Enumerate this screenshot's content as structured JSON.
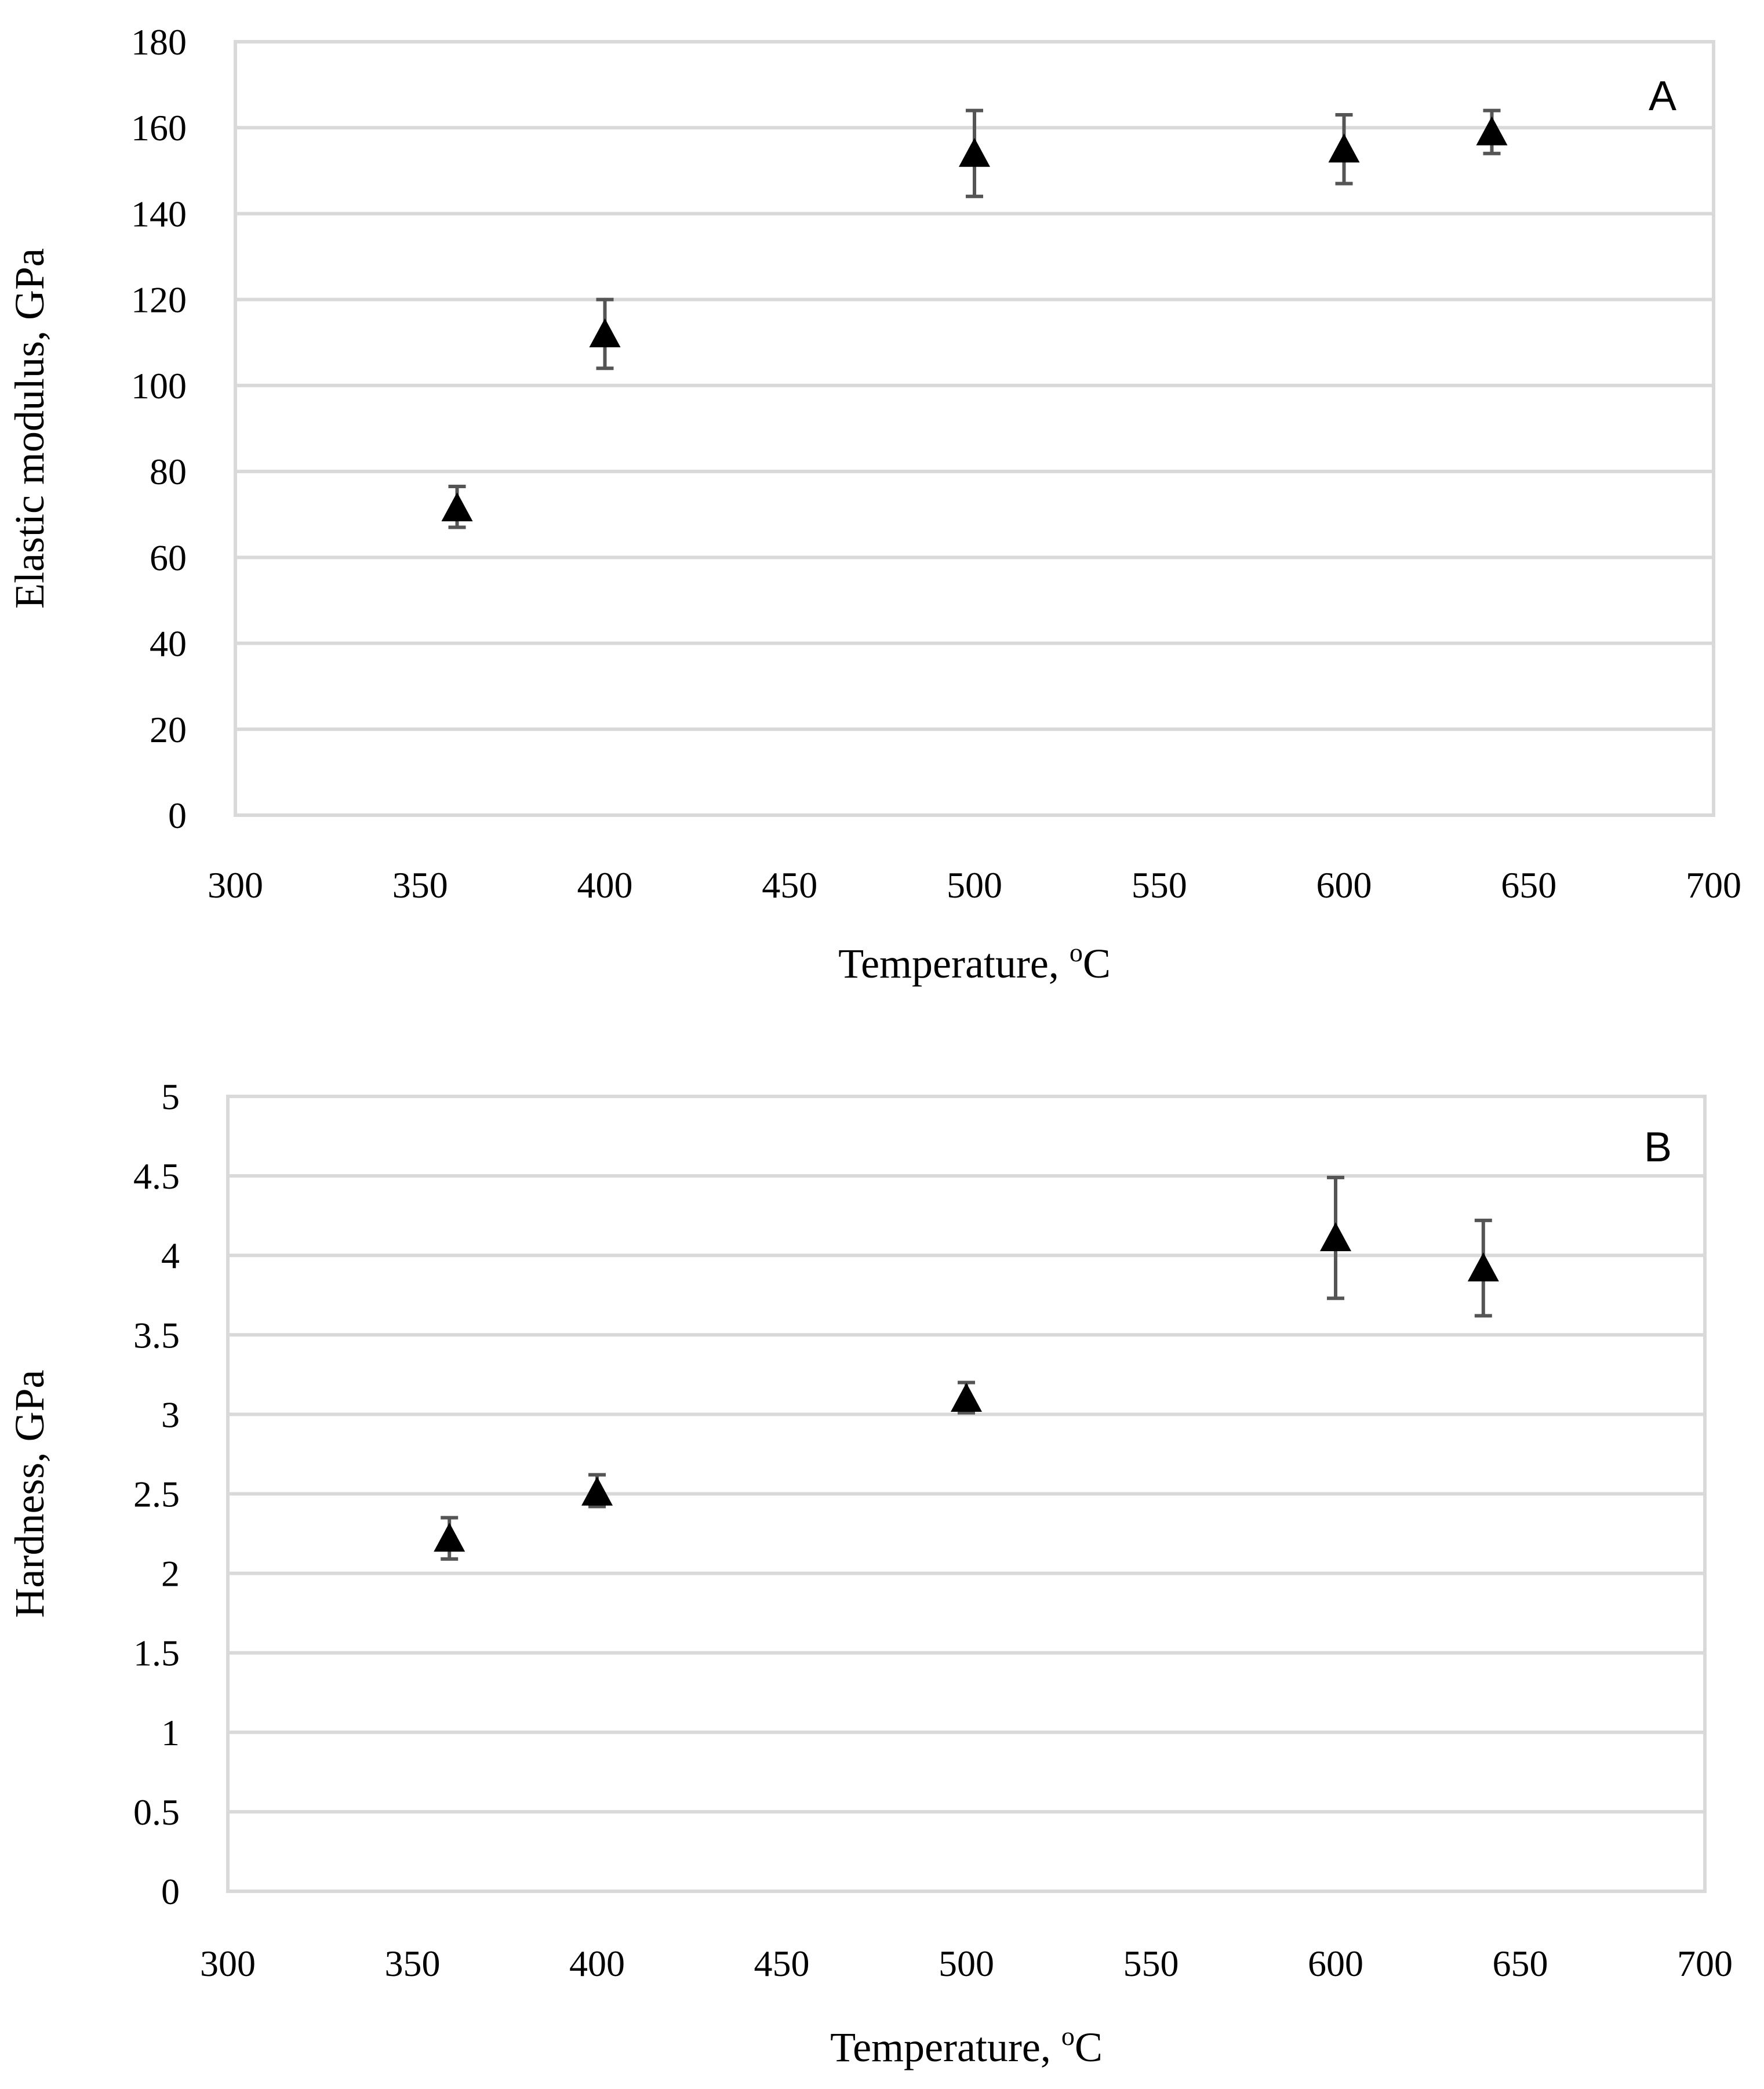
{
  "chart_data": [
    {
      "type": "scatter",
      "panel_label": "A",
      "title": "",
      "xlabel": "Temperature, ",
      "xlabel_unit_sup": "o",
      "xlabel_unit": "C",
      "ylabel": "Elastic modulus, GPa",
      "xlim": [
        300,
        700
      ],
      "ylim": [
        0,
        180
      ],
      "xticks": [
        300,
        350,
        400,
        450,
        500,
        550,
        600,
        650,
        700
      ],
      "yticks": [
        0,
        20,
        40,
        60,
        80,
        100,
        120,
        140,
        160,
        180
      ],
      "grid": "horizontal",
      "marker": "triangle",
      "series": [
        {
          "name": "Elastic modulus",
          "x": [
            360,
            400,
            500,
            600,
            640
          ],
          "y": [
            71.5,
            112,
            154,
            155,
            159
          ],
          "err_low": [
            67,
            104,
            144,
            147,
            154
          ],
          "err_high": [
            76.5,
            120,
            164,
            163,
            164
          ]
        }
      ]
    },
    {
      "type": "scatter",
      "panel_label": "B",
      "title": "",
      "xlabel": "Temperature, ",
      "xlabel_unit_sup": "o",
      "xlabel_unit": "C",
      "ylabel": "Hardness, GPa",
      "xlim": [
        300,
        700
      ],
      "ylim": [
        0,
        5
      ],
      "xticks": [
        300,
        350,
        400,
        450,
        500,
        550,
        600,
        650,
        700
      ],
      "yticks": [
        0,
        0.5,
        1,
        1.5,
        2,
        2.5,
        3,
        3.5,
        4,
        4.5,
        5
      ],
      "grid": "horizontal",
      "marker": "triangle",
      "series": [
        {
          "name": "Hardness",
          "x": [
            360,
            400,
            500,
            600,
            640
          ],
          "y": [
            2.22,
            2.51,
            3.1,
            4.11,
            3.92
          ],
          "err_low": [
            2.09,
            2.42,
            3.01,
            3.73,
            3.62
          ],
          "err_high": [
            2.35,
            2.62,
            3.2,
            4.49,
            4.22
          ]
        }
      ]
    }
  ]
}
